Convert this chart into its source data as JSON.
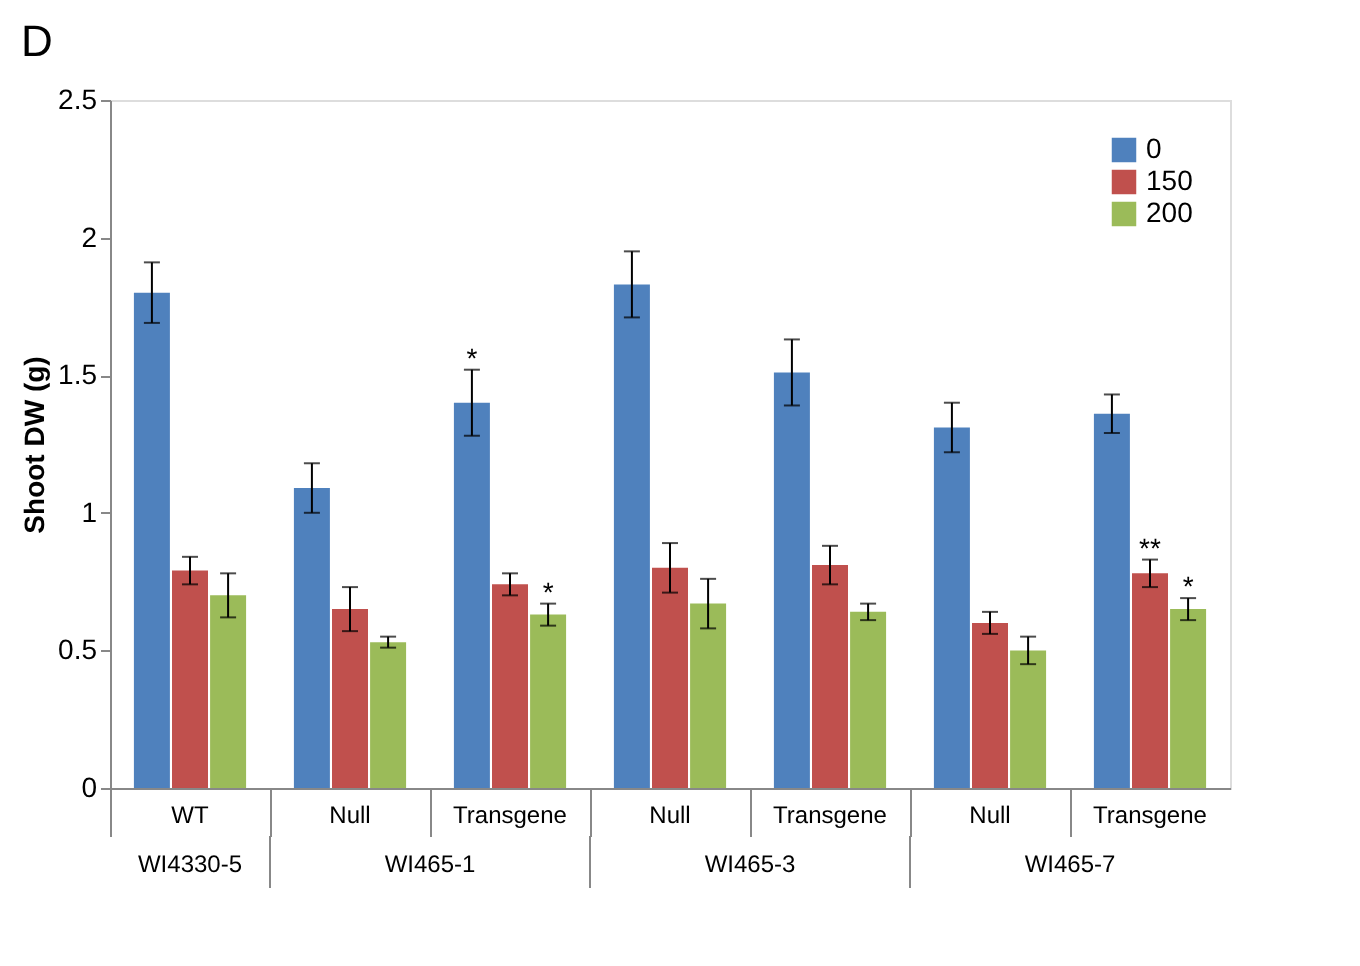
{
  "chart_data": {
    "type": "bar",
    "title": "D",
    "ylabel": "Shoot DW (g)",
    "categories": [
      "WT",
      "Null",
      "Transgene",
      "Null",
      "Transgene",
      "Null",
      "Transgene"
    ],
    "series": [
      {
        "name": "0",
        "color": "#4f81bd",
        "values": [
          1.8,
          1.09,
          1.4,
          1.83,
          1.51,
          1.31,
          1.36
        ],
        "errors": [
          0.11,
          0.09,
          0.12,
          0.12,
          0.12,
          0.09,
          0.07
        ],
        "value_labels": [
          null,
          null,
          "*",
          null,
          null,
          null,
          null
        ]
      },
      {
        "name": "150",
        "color": "#c0504d",
        "values": [
          0.79,
          0.65,
          0.74,
          0.8,
          0.81,
          0.6,
          0.78
        ],
        "errors": [
          0.05,
          0.08,
          0.04,
          0.09,
          0.07,
          0.04,
          0.05
        ],
        "value_labels": [
          null,
          null,
          null,
          null,
          null,
          null,
          "**"
        ]
      },
      {
        "name": "200",
        "color": "#9bbb59",
        "values": [
          0.7,
          0.53,
          0.63,
          0.67,
          0.64,
          0.5,
          0.65
        ],
        "errors": [
          0.08,
          0.02,
          0.04,
          0.09,
          0.03,
          0.05,
          0.04
        ],
        "value_labels": [
          null,
          null,
          "*",
          null,
          null,
          null,
          "*"
        ]
      }
    ],
    "ylim": [
      0,
      2.5
    ],
    "yticks": [
      0,
      0.5,
      1,
      1.5,
      2,
      2.5
    ],
    "grid": false,
    "legend": "top right",
    "annotations": [
      "WI4330-5",
      "WI465-1",
      "WI465-3",
      "WI465-7"
    ]
  }
}
